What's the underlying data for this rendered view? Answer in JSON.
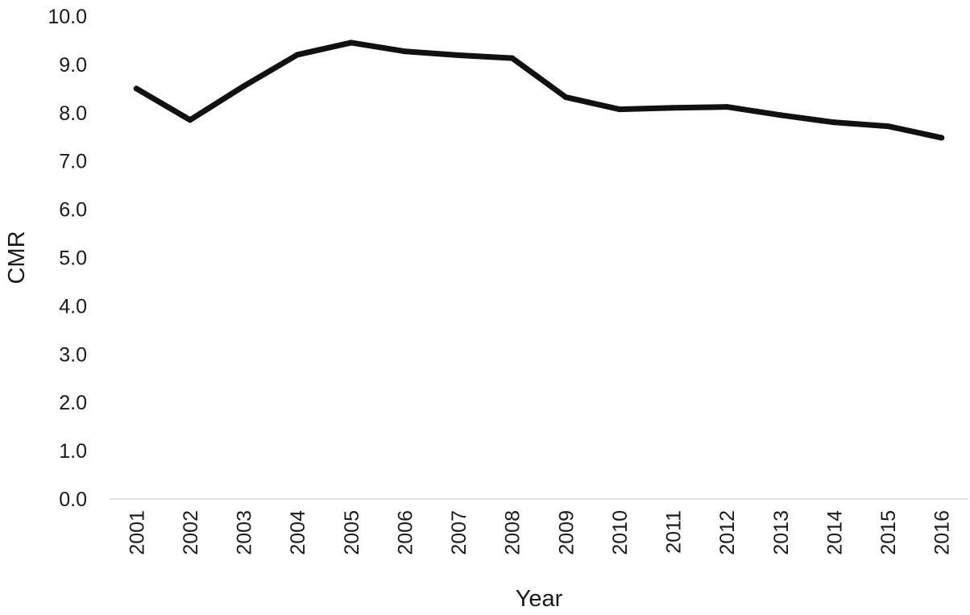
{
  "chart_data": {
    "type": "line",
    "title": "",
    "xlabel": "Year",
    "ylabel": "CMR",
    "categories": [
      "2001",
      "2002",
      "2003",
      "2004",
      "2005",
      "2006",
      "2007",
      "2008",
      "2009",
      "2010",
      "2011",
      "2012",
      "2013",
      "2014",
      "2015",
      "2016"
    ],
    "series": [
      {
        "values": [
          8.5,
          7.85,
          8.55,
          9.2,
          9.45,
          9.27,
          9.19,
          9.13,
          8.32,
          8.07,
          8.1,
          8.12,
          7.95,
          7.8,
          7.72,
          7.48
        ],
        "color": "#111111"
      }
    ],
    "ylim": [
      0,
      10
    ],
    "yticks": [
      "0.0",
      "1.0",
      "2.0",
      "3.0",
      "4.0",
      "5.0",
      "6.0",
      "7.0",
      "8.0",
      "9.0",
      "10.0"
    ],
    "grid": false,
    "legend": "none"
  },
  "colors": {
    "axis": "#d9d9d9",
    "text": "#1a1a1a",
    "line": "#111111"
  }
}
